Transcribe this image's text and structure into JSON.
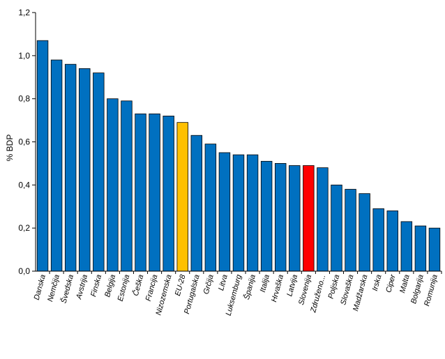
{
  "chart_data": {
    "type": "bar",
    "ylabel": "% BDP",
    "ylim": [
      0,
      1.2
    ],
    "yticks": [
      "0,0",
      "0,2",
      "0,4",
      "0,6",
      "0,8",
      "1,0",
      "1,2"
    ],
    "grid": false,
    "categories": [
      "Danska",
      "Nemčija",
      "Švedska",
      "Avstrija",
      "Finska",
      "Belgija",
      "Estonija",
      "Češka",
      "Francija",
      "Nizozemska",
      "EU-28",
      "Portugalska",
      "Grčija",
      "Litva",
      "Luksemburg",
      "Španija",
      "Italija",
      "Hrvaška",
      "Latvija",
      "Slovenija",
      "Združeno...",
      "Poljska",
      "Slovaška",
      "Madžarska",
      "Irska",
      "Ciper",
      "Malta",
      "Bolgarija",
      "Romunija"
    ],
    "values": [
      1.07,
      0.98,
      0.96,
      0.94,
      0.92,
      0.8,
      0.79,
      0.73,
      0.73,
      0.72,
      0.69,
      0.63,
      0.59,
      0.55,
      0.54,
      0.54,
      0.51,
      0.5,
      0.49,
      0.49,
      0.48,
      0.4,
      0.38,
      0.36,
      0.29,
      0.28,
      0.23,
      0.21,
      0.2
    ],
    "colors": {
      "default": "#0070C0",
      "highlight_eu": "#FFC000",
      "highlight_si": "#FF0000",
      "stroke": "#000000"
    },
    "highlight": {
      "EU-28": "highlight_eu",
      "Slovenija": "highlight_si"
    }
  }
}
